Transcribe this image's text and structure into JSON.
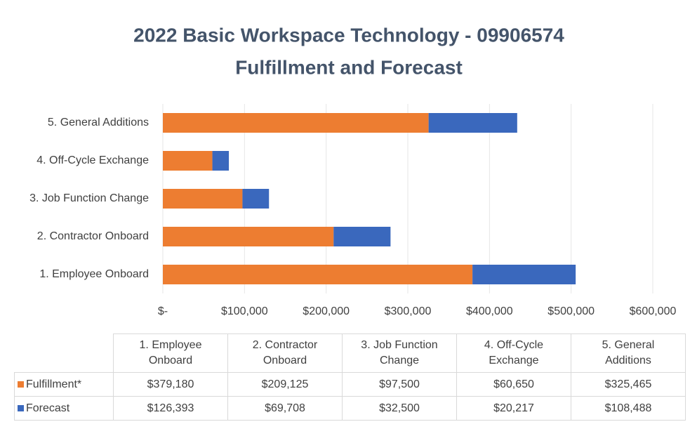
{
  "chart_data": {
    "type": "bar",
    "orientation": "horizontal",
    "stacked": true,
    "title": "2022 Basic Workspace Technology - 09906574",
    "subtitle": "Fulfillment and Forecast",
    "categories": [
      "1. Employee Onboard",
      "2. Contractor Onboard",
      "3. Job Function Change",
      "4. Off-Cycle Exchange",
      "5. General Additions"
    ],
    "series": [
      {
        "name": "Fulfillment*",
        "color": "#ed7d31",
        "values": [
          379180,
          209125,
          97500,
          60650,
          325465
        ],
        "value_labels": [
          "$379,180",
          "$209,125",
          "$97,500",
          "$60,650",
          "$325,465"
        ]
      },
      {
        "name": "Forecast",
        "color": "#3a68bd",
        "values": [
          126393,
          69708,
          32500,
          20217,
          108488
        ],
        "value_labels": [
          "$126,393",
          "$69,708",
          "$32,500",
          "$20,217",
          "$108,488"
        ]
      }
    ],
    "xlim": [
      0,
      600000
    ],
    "xticks": [
      {
        "value": 0,
        "label": "$-"
      },
      {
        "value": 100000,
        "label": "$100,000"
      },
      {
        "value": 200000,
        "label": "$200,000"
      },
      {
        "value": 300000,
        "label": "$300,000"
      },
      {
        "value": 400000,
        "label": "$400,000"
      },
      {
        "value": 500000,
        "label": "$500,000"
      },
      {
        "value": 600000,
        "label": "$600,000"
      }
    ],
    "grid": true,
    "data_table": true
  }
}
